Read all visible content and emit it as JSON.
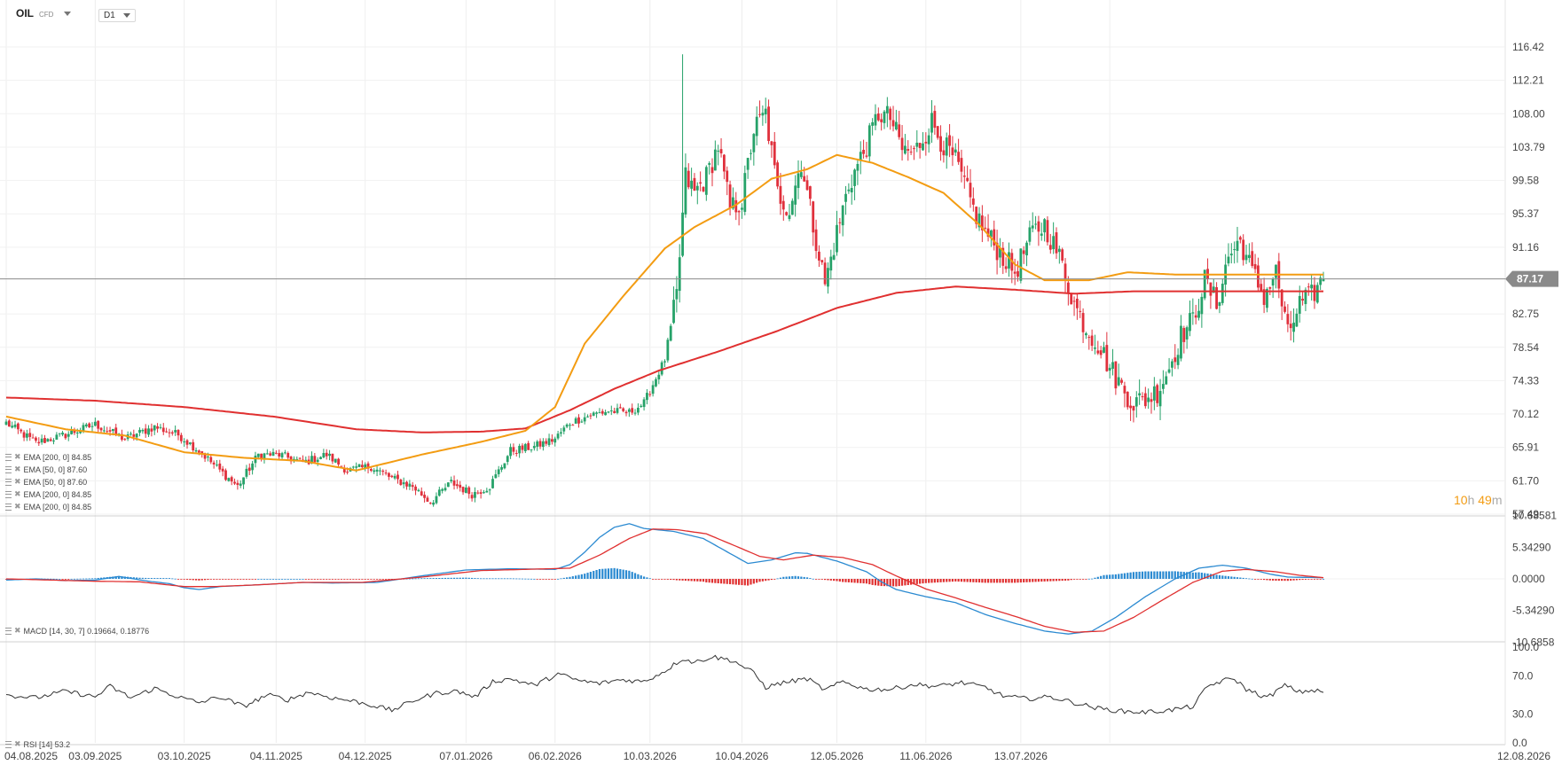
{
  "header": {
    "symbol": "OIL",
    "instrument_type": "CFD",
    "timeframe": "D1"
  },
  "timer": {
    "hours": "10",
    "hours_unit": "h",
    "minutes": "49",
    "minutes_unit": "m"
  },
  "legends": {
    "ema_lines": [
      "EMA [200, 0] 84.85",
      "EMA [50, 0] 87.60",
      "EMA [50, 0] 87.60",
      "EMA [200, 0] 84.85",
      "EMA [200, 0] 84.85"
    ],
    "macd": "MACD [14, 30, 7] 0.19664, 0.18776",
    "rsi": "RSI [14] 53.2"
  },
  "colors": {
    "up": "#26a269",
    "down": "#e0303c",
    "ema50": "#f39c12",
    "ema200": "#e03030",
    "macd": "#2b8ad1",
    "signal": "#e03030",
    "rsi": "#333333",
    "price_tag": "#8a8a8a"
  },
  "chart_data": [
    {
      "type": "candlestick",
      "title": "",
      "last_price": 87.17,
      "last_price_label": "87.17",
      "y_ticks": [
        "116.42",
        "112.21",
        "108.00",
        "103.79",
        "99.58",
        "95.37",
        "91.16",
        "82.75",
        "78.54",
        "74.33",
        "70.12",
        "65.91",
        "61.70",
        "57.49"
      ],
      "ylim": [
        57.49,
        116.42
      ],
      "x_ticks": [
        "04.08.2025",
        "03.09.2025",
        "03.10.2025",
        "04.11.2025",
        "04.12.2025",
        "07.01.2026",
        "06.02.2026",
        "10.03.2026",
        "10.04.2026",
        "12.05.2026",
        "11.06.2026",
        "13.07.2026",
        "12.08.2026"
      ],
      "ema50_anchors": [
        [
          0,
          69.8
        ],
        [
          20,
          68.2
        ],
        [
          40,
          67.4
        ],
        [
          60,
          65.3
        ],
        [
          80,
          64.6
        ],
        [
          100,
          64.2
        ],
        [
          118,
          63.0
        ],
        [
          140,
          65.0
        ],
        [
          160,
          66.6
        ],
        [
          175,
          68.0
        ],
        [
          185,
          71.0
        ],
        [
          195,
          79.0
        ],
        [
          208,
          85.0
        ],
        [
          222,
          91.0
        ],
        [
          232,
          93.7
        ],
        [
          246,
          96.5
        ],
        [
          258,
          99.8
        ],
        [
          270,
          101.0
        ],
        [
          280,
          102.8
        ],
        [
          292,
          101.8
        ],
        [
          304,
          100.0
        ],
        [
          316,
          98.0
        ],
        [
          328,
          94.0
        ],
        [
          340,
          89.0
        ],
        [
          350,
          87.0
        ],
        [
          365,
          87.0
        ],
        [
          378,
          88.0
        ],
        [
          395,
          87.7
        ]
      ],
      "ema200_anchors": [
        [
          0,
          72.2
        ],
        [
          30,
          71.8
        ],
        [
          60,
          71.0
        ],
        [
          90,
          69.8
        ],
        [
          118,
          68.2
        ],
        [
          140,
          67.8
        ],
        [
          160,
          67.9
        ],
        [
          175,
          68.3
        ],
        [
          190,
          70.6
        ],
        [
          205,
          73.3
        ],
        [
          220,
          75.6
        ],
        [
          240,
          78.0
        ],
        [
          260,
          80.6
        ],
        [
          280,
          83.5
        ],
        [
          300,
          85.4
        ],
        [
          320,
          86.2
        ],
        [
          340,
          85.8
        ],
        [
          360,
          85.3
        ],
        [
          380,
          85.6
        ],
        [
          395,
          85.6
        ]
      ],
      "candle_anchors": [
        [
          0,
          69.0
        ],
        [
          10,
          66.5
        ],
        [
          20,
          67.5
        ],
        [
          30,
          68.8
        ],
        [
          40,
          67.0
        ],
        [
          50,
          68.5
        ],
        [
          58,
          67.5
        ],
        [
          65,
          65.5
        ],
        [
          72,
          63.0
        ],
        [
          78,
          61.0
        ],
        [
          85,
          65.0
        ],
        [
          92,
          65.0
        ],
        [
          100,
          64.0
        ],
        [
          108,
          65.0
        ],
        [
          115,
          63.0
        ],
        [
          123,
          63.5
        ],
        [
          130,
          62.0
        ],
        [
          137,
          61.0
        ],
        [
          143,
          59.0
        ],
        [
          150,
          61.5
        ],
        [
          157,
          60.0
        ],
        [
          163,
          61.0
        ],
        [
          170,
          65.5
        ],
        [
          178,
          66.0
        ],
        [
          185,
          67.0
        ],
        [
          190,
          69.0
        ],
        [
          197,
          70.0
        ],
        [
          203,
          70.5
        ],
        [
          210,
          70.3
        ],
        [
          215,
          71.5
        ],
        [
          222,
          77.0
        ],
        [
          226,
          85.0
        ],
        [
          229,
          100.0
        ],
        [
          232,
          98.0
        ],
        [
          236,
          100.0
        ],
        [
          240,
          104.0
        ],
        [
          244,
          96.0
        ],
        [
          248,
          97.0
        ],
        [
          252,
          106.0
        ],
        [
          256,
          108.0
        ],
        [
          260,
          98.0
        ],
        [
          264,
          96.0
        ],
        [
          268,
          102.0
        ],
        [
          272,
          94.0
        ],
        [
          276,
          86.5
        ],
        [
          280,
          93.0
        ],
        [
          284,
          99.0
        ],
        [
          290,
          104.0
        ],
        [
          294,
          108.0
        ],
        [
          298,
          107.5
        ],
        [
          302,
          103.5
        ],
        [
          306,
          103.0
        ],
        [
          312,
          107.0
        ],
        [
          316,
          104.0
        ],
        [
          320,
          102.0
        ],
        [
          326,
          96.0
        ],
        [
          330,
          93.0
        ],
        [
          336,
          90.0
        ],
        [
          340,
          88.0
        ],
        [
          346,
          93.0
        ],
        [
          350,
          94.0
        ],
        [
          356,
          89.0
        ],
        [
          360,
          84.0
        ],
        [
          364,
          81.0
        ],
        [
          368,
          79.0
        ],
        [
          372,
          76.0
        ],
        [
          376,
          73.5
        ],
        [
          380,
          71.5
        ],
        [
          384,
          72.0
        ],
        [
          388,
          73.0
        ],
        [
          392,
          76.0
        ],
        [
          396,
          80.0
        ],
        [
          400,
          82.0
        ],
        [
          404,
          87.0
        ],
        [
          408,
          84.0
        ],
        [
          412,
          90.0
        ],
        [
          416,
          92.0
        ],
        [
          420,
          88.0
        ],
        [
          424,
          85.0
        ],
        [
          428,
          88.0
        ],
        [
          432,
          80.0
        ],
        [
          436,
          84.0
        ],
        [
          440,
          85.0
        ],
        [
          444,
          87.2
        ]
      ]
    },
    {
      "type": "bar",
      "title": "",
      "y_ticks": [
        "10.68581",
        "5.34290",
        "0.0000",
        "-5.34290",
        "-10.6858"
      ],
      "ylim": [
        -10.6858,
        10.68581
      ],
      "macd_anchors": [
        [
          0,
          -0.2
        ],
        [
          10,
          0.0
        ],
        [
          20,
          -0.3
        ],
        [
          30,
          -0.2
        ],
        [
          38,
          0.4
        ],
        [
          48,
          -0.4
        ],
        [
          55,
          -0.8
        ],
        [
          60,
          -1.5
        ],
        [
          65,
          -1.8
        ],
        [
          72,
          -1.3
        ],
        [
          85,
          -1.0
        ],
        [
          100,
          -0.6
        ],
        [
          110,
          -0.7
        ],
        [
          125,
          -0.6
        ],
        [
          140,
          0.5
        ],
        [
          155,
          1.5
        ],
        [
          170,
          1.7
        ],
        [
          185,
          1.6
        ],
        [
          190,
          2.4
        ],
        [
          195,
          4.5
        ],
        [
          200,
          7.0
        ],
        [
          205,
          8.7
        ],
        [
          210,
          9.3
        ],
        [
          215,
          8.5
        ],
        [
          225,
          8.0
        ],
        [
          235,
          6.8
        ],
        [
          245,
          4.0
        ],
        [
          250,
          2.6
        ],
        [
          258,
          3.2
        ],
        [
          266,
          4.4
        ],
        [
          270,
          4.3
        ],
        [
          280,
          3.0
        ],
        [
          290,
          1.2
        ],
        [
          295,
          -0.5
        ],
        [
          300,
          -1.8
        ],
        [
          310,
          -3.0
        ],
        [
          320,
          -4.0
        ],
        [
          330,
          -6.0
        ],
        [
          340,
          -7.5
        ],
        [
          350,
          -8.8
        ],
        [
          358,
          -9.3
        ],
        [
          366,
          -8.8
        ],
        [
          374,
          -6.5
        ],
        [
          384,
          -3.0
        ],
        [
          394,
          0.0
        ],
        [
          402,
          1.8
        ],
        [
          410,
          2.3
        ],
        [
          418,
          1.8
        ],
        [
          426,
          0.8
        ],
        [
          432,
          0.3
        ],
        [
          444,
          0.2
        ]
      ],
      "signal_anchors": [
        [
          0,
          0.0
        ],
        [
          15,
          -0.2
        ],
        [
          30,
          -0.4
        ],
        [
          45,
          -0.5
        ],
        [
          60,
          -1.3
        ],
        [
          70,
          -1.3
        ],
        [
          85,
          -1.0
        ],
        [
          100,
          -0.6
        ],
        [
          120,
          -0.6
        ],
        [
          140,
          0.3
        ],
        [
          160,
          1.4
        ],
        [
          175,
          1.6
        ],
        [
          190,
          1.8
        ],
        [
          200,
          4.0
        ],
        [
          210,
          6.8
        ],
        [
          218,
          8.4
        ],
        [
          226,
          8.3
        ],
        [
          236,
          7.6
        ],
        [
          246,
          5.5
        ],
        [
          254,
          3.8
        ],
        [
          262,
          3.2
        ],
        [
          272,
          4.0
        ],
        [
          282,
          3.6
        ],
        [
          292,
          2.4
        ],
        [
          300,
          0.5
        ],
        [
          310,
          -1.7
        ],
        [
          320,
          -3.2
        ],
        [
          330,
          -4.8
        ],
        [
          340,
          -6.3
        ],
        [
          350,
          -8.0
        ],
        [
          360,
          -9.0
        ],
        [
          370,
          -8.8
        ],
        [
          380,
          -6.5
        ],
        [
          390,
          -3.5
        ],
        [
          400,
          -0.6
        ],
        [
          410,
          1.3
        ],
        [
          418,
          1.6
        ],
        [
          428,
          1.2
        ],
        [
          436,
          0.6
        ],
        [
          444,
          0.2
        ]
      ]
    },
    {
      "type": "line",
      "title": "",
      "y_ticks": [
        "100.0",
        "70.0",
        "30.0",
        "0.0"
      ],
      "ylim": [
        0,
        100
      ],
      "rsi_anchors": [
        [
          0,
          50
        ],
        [
          10,
          47
        ],
        [
          20,
          54
        ],
        [
          30,
          48
        ],
        [
          35,
          59
        ],
        [
          42,
          47
        ],
        [
          50,
          57
        ],
        [
          58,
          48
        ],
        [
          65,
          42
        ],
        [
          72,
          48
        ],
        [
          80,
          38
        ],
        [
          88,
          50
        ],
        [
          95,
          45
        ],
        [
          102,
          53
        ],
        [
          110,
          47
        ],
        [
          118,
          43
        ],
        [
          125,
          38
        ],
        [
          130,
          34
        ],
        [
          138,
          45
        ],
        [
          145,
          52
        ],
        [
          152,
          54
        ],
        [
          158,
          48
        ],
        [
          164,
          64
        ],
        [
          170,
          67
        ],
        [
          178,
          60
        ],
        [
          186,
          72
        ],
        [
          193,
          65
        ],
        [
          200,
          62
        ],
        [
          207,
          66
        ],
        [
          215,
          64
        ],
        [
          222,
          75
        ],
        [
          228,
          88
        ],
        [
          232,
          84
        ],
        [
          238,
          90
        ],
        [
          245,
          86
        ],
        [
          252,
          73
        ],
        [
          256,
          58
        ],
        [
          262,
          63
        ],
        [
          270,
          67
        ],
        [
          276,
          55
        ],
        [
          282,
          64
        ],
        [
          290,
          56
        ],
        [
          298,
          56
        ],
        [
          306,
          61
        ],
        [
          314,
          59
        ],
        [
          322,
          63
        ],
        [
          330,
          58
        ],
        [
          336,
          49
        ],
        [
          344,
          46
        ],
        [
          352,
          48
        ],
        [
          360,
          42
        ],
        [
          368,
          36
        ],
        [
          376,
          33
        ],
        [
          384,
          32
        ],
        [
          392,
          34
        ],
        [
          400,
          38
        ],
        [
          405,
          59
        ],
        [
          410,
          65
        ],
        [
          414,
          67
        ],
        [
          418,
          56
        ],
        [
          425,
          47
        ],
        [
          431,
          60
        ],
        [
          436,
          53
        ],
        [
          440,
          55
        ],
        [
          444,
          53
        ]
      ]
    }
  ]
}
